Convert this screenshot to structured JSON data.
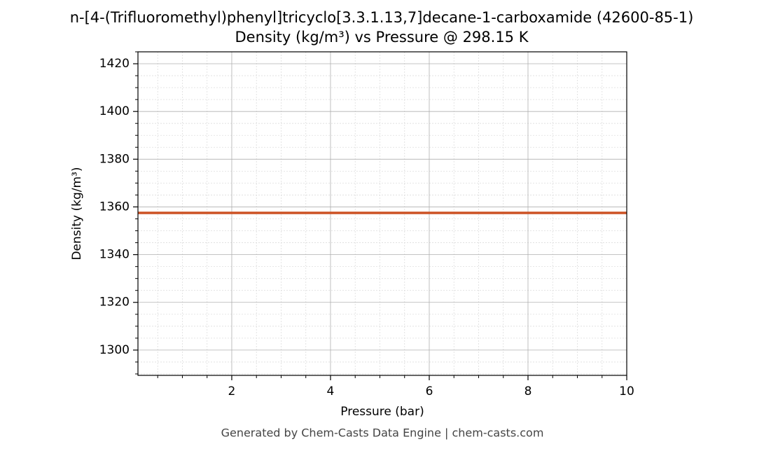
{
  "chart_data": {
    "type": "line",
    "title": "n-[4-(Trifluoromethyl)phenyl]tricyclo[3.3.1.13,7]decane-1-carboxamide (42600-85-1)",
    "subtitle": "Density (kg/m³) vs Pressure @ 298.15 K",
    "x_label": "Pressure (bar)",
    "y_label": "Density (kg/m³)",
    "footer": "Generated by Chem-Casts Data Engine | chem-casts.com",
    "x": [
      0.1,
      10
    ],
    "series": [
      {
        "name": "Density",
        "color": "#cc5224",
        "values": [
          1357.5,
          1357.5
        ]
      }
    ],
    "xlim": [
      0.1,
      10
    ],
    "xticks": [
      2,
      4,
      6,
      8,
      10
    ],
    "xminorticks": [
      0.5,
      1,
      1.5,
      2.5,
      3,
      3.5,
      4.5,
      5,
      5.5,
      6.5,
      7,
      7.5,
      8.5,
      9,
      9.5
    ],
    "ylim": [
      1289.4,
      1425
    ],
    "yticks": [
      1300,
      1320,
      1340,
      1360,
      1380,
      1400,
      1420
    ],
    "yminorticks": [
      1290,
      1295,
      1305,
      1310,
      1315,
      1325,
      1330,
      1335,
      1345,
      1350,
      1355,
      1365,
      1370,
      1375,
      1385,
      1390,
      1395,
      1405,
      1410,
      1415,
      1425
    ],
    "grid": true,
    "minor_grid": true
  }
}
